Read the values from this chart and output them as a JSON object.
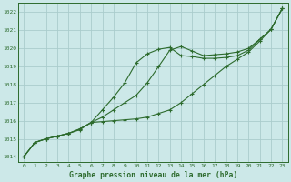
{
  "title": "Graphe pression niveau de la mer (hPa)",
  "xlabel_ticks": [
    0,
    1,
    2,
    3,
    4,
    5,
    6,
    7,
    8,
    9,
    10,
    11,
    12,
    13,
    14,
    15,
    16,
    17,
    18,
    19,
    20,
    21,
    22,
    23
  ],
  "ylim": [
    1013.7,
    1022.5
  ],
  "yticks": [
    1014,
    1015,
    1016,
    1017,
    1018,
    1019,
    1020,
    1021,
    1022
  ],
  "bg_color": "#cce8e8",
  "grid_color": "#aacccc",
  "line_color": "#2d6b2d",
  "figsize": [
    3.2,
    2.0
  ],
  "dpi": 100,
  "series1": [
    1014.0,
    1014.8,
    1015.0,
    1015.15,
    1015.3,
    1015.5,
    1015.9,
    1016.2,
    1016.6,
    1017.0,
    1017.4,
    1018.1,
    1019.0,
    1019.9,
    1020.1,
    1019.85,
    1019.6,
    1019.65,
    1019.7,
    1019.8,
    1020.0,
    1020.5,
    1021.05,
    1022.2
  ],
  "series2": [
    1014.0,
    1014.8,
    1015.0,
    1015.15,
    1015.3,
    1015.55,
    1015.9,
    1016.6,
    1017.3,
    1018.1,
    1019.2,
    1019.7,
    1019.95,
    1020.05,
    1019.6,
    1019.55,
    1019.45,
    1019.45,
    1019.5,
    1019.6,
    1019.9,
    1020.5,
    1021.05,
    1022.2
  ],
  "series3": [
    1014.0,
    1014.8,
    1015.0,
    1015.15,
    1015.3,
    1015.55,
    1015.9,
    1015.95,
    1016.0,
    1016.05,
    1016.1,
    1016.2,
    1016.4,
    1016.6,
    1017.0,
    1017.5,
    1018.0,
    1018.5,
    1019.0,
    1019.4,
    1019.8,
    1020.4,
    1021.05,
    1022.2
  ]
}
